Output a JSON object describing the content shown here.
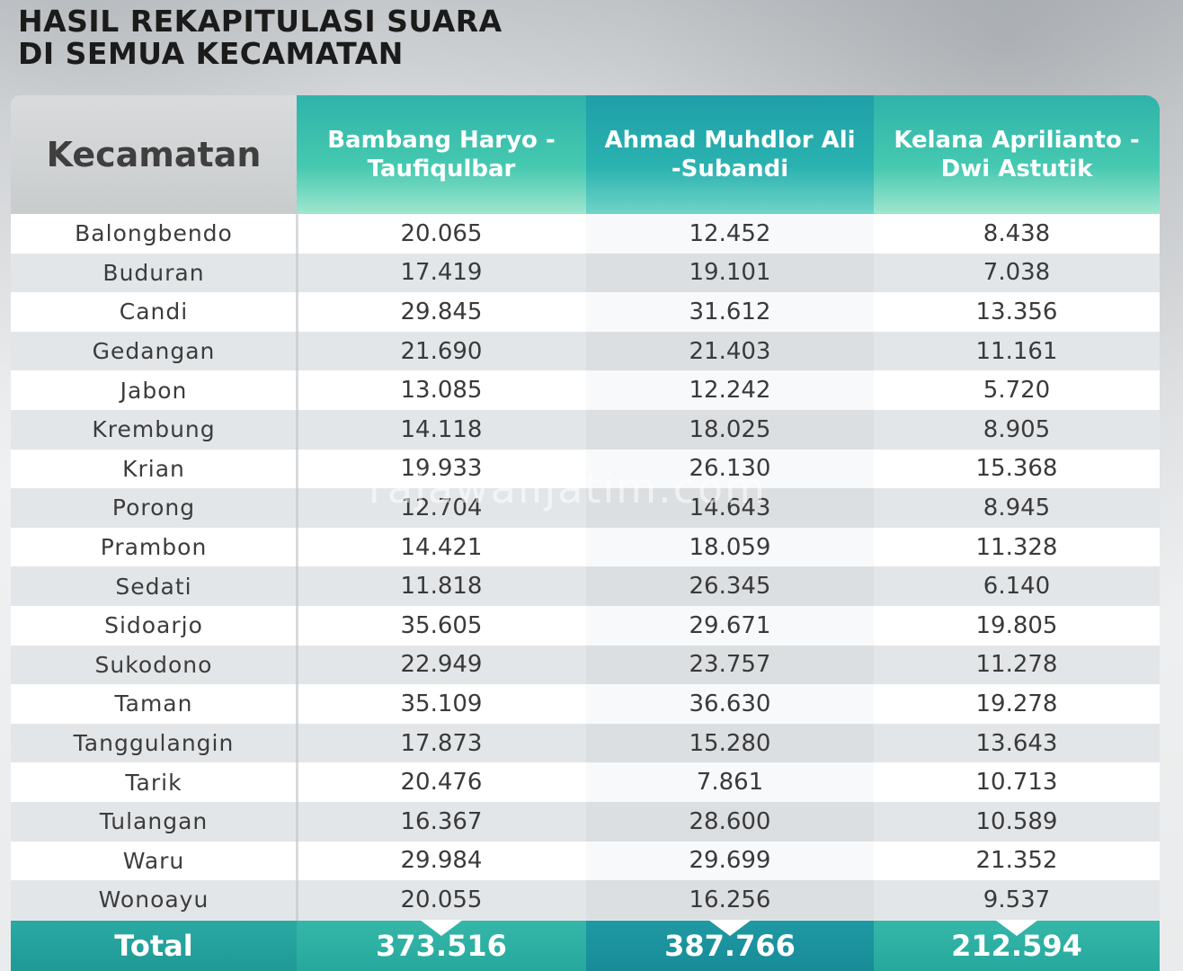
{
  "title_lines": [
    "HASIL REKAPITULASI SUARA",
    "DI SEMUA KECAMATAN"
  ],
  "watermark": "rajawalijatim.com",
  "colors": {
    "teal": "#2fb3aa",
    "dark_teal": "#1f9fa8",
    "header_gray": "#d9dbdc"
  },
  "chart_data": {
    "type": "table",
    "title": "HASIL REKAPITULASI SUARA DI SEMUA KECAMATAN",
    "columns": [
      "Kecamatan",
      "Bambang Haryo -Taufiqulbar",
      "Ahmad Muhdlor Ali -Subandi",
      "Kelana Aprilianto -Dwi Astutik"
    ],
    "headers": {
      "kecamatan": "Kecamatan",
      "c1": "Bambang Haryo -Taufiqulbar",
      "c2": "Ahmad Muhdlor Ali -Subandi",
      "c3": "Kelana Aprilianto -Dwi Astutik"
    },
    "rows": [
      {
        "name": "Balongbendo",
        "v1": "20.065",
        "v2": "12.452",
        "v3": "8.438"
      },
      {
        "name": "Buduran",
        "v1": "17.419",
        "v2": "19.101",
        "v3": "7.038"
      },
      {
        "name": "Candi",
        "v1": "29.845",
        "v2": "31.612",
        "v3": "13.356"
      },
      {
        "name": "Gedangan",
        "v1": "21.690",
        "v2": "21.403",
        "v3": "11.161"
      },
      {
        "name": "Jabon",
        "v1": "13.085",
        "v2": "12.242",
        "v3": "5.720"
      },
      {
        "name": "Krembung",
        "v1": "14.118",
        "v2": "18.025",
        "v3": "8.905"
      },
      {
        "name": "Krian",
        "v1": "19.933",
        "v2": "26.130",
        "v3": "15.368"
      },
      {
        "name": "Porong",
        "v1": "12.704",
        "v2": "14.643",
        "v3": "8.945"
      },
      {
        "name": "Prambon",
        "v1": "14.421",
        "v2": "18.059",
        "v3": "11.328"
      },
      {
        "name": "Sedati",
        "v1": "11.818",
        "v2": "26.345",
        "v3": "6.140"
      },
      {
        "name": "Sidoarjo",
        "v1": "35.605",
        "v2": "29.671",
        "v3": "19.805"
      },
      {
        "name": "Sukodono",
        "v1": "22.949",
        "v2": "23.757",
        "v3": "11.278"
      },
      {
        "name": "Taman",
        "v1": "35.109",
        "v2": "36.630",
        "v3": "19.278"
      },
      {
        "name": "Tanggulangin",
        "v1": "17.873",
        "v2": "15.280",
        "v3": "13.643"
      },
      {
        "name": "Tarik",
        "v1": "20.476",
        "v2": "7.861",
        "v3": "10.713"
      },
      {
        "name": "Tulangan",
        "v1": "16.367",
        "v2": "28.600",
        "v3": "10.589"
      },
      {
        "name": "Waru",
        "v1": "29.984",
        "v2": "29.699",
        "v3": "21.352"
      },
      {
        "name": "Wonoayu",
        "v1": "20.055",
        "v2": "16.256",
        "v3": "9.537"
      }
    ],
    "total": {
      "label": "Total",
      "v1": "373.516",
      "v2": "387.766",
      "v3": "212.594"
    }
  }
}
